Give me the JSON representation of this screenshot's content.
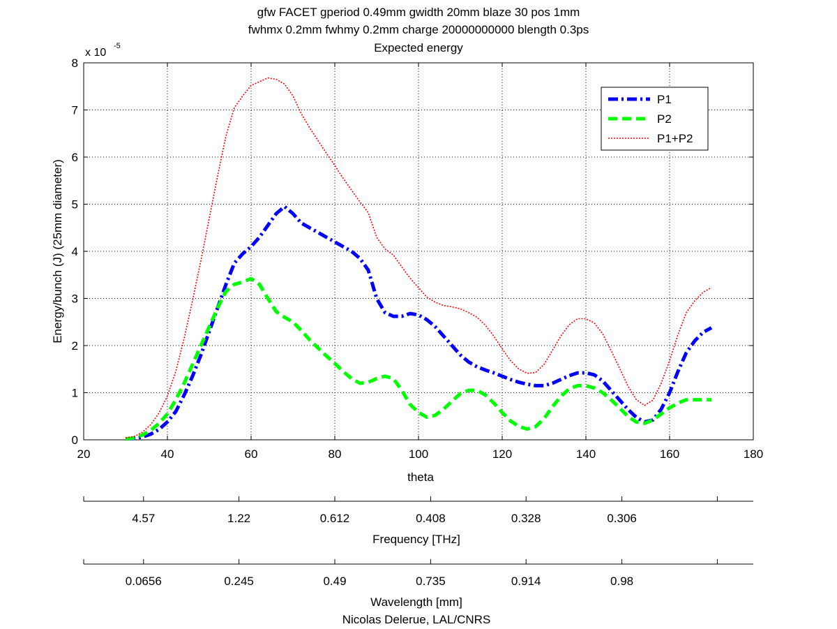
{
  "chart_data": {
    "type": "line",
    "title_lines": [
      "gfw FACET gperiod 0.49mm gwidth 20mm blaze 30 pos 1mm",
      "fwhmx 0.2mm fwhmy 0.2mm charge 20000000000 blength 0.3ps",
      "Expected energy"
    ],
    "xlabel": "theta",
    "ylabel": "Energy/bunch (J) (25mm diameter)",
    "y_exponent_label": "x 10",
    "y_exponent_power": "-5",
    "xlim": [
      20,
      180
    ],
    "ylim": [
      0,
      8
    ],
    "xticks": [
      20,
      40,
      60,
      80,
      100,
      120,
      140,
      160,
      180
    ],
    "yticks": [
      0,
      1,
      2,
      3,
      4,
      5,
      6,
      7,
      8
    ],
    "grid": true,
    "legend_position": "top-right",
    "series": [
      {
        "name": "P1",
        "color": "#0000ff",
        "style": "dash-dot",
        "x": [
          30,
          32,
          34,
          36,
          38,
          40,
          42,
          44,
          46,
          48,
          50,
          52,
          54,
          56,
          58,
          60,
          62,
          64,
          66,
          68,
          70,
          72,
          74,
          76,
          78,
          80,
          82,
          84,
          86,
          88,
          90,
          92,
          94,
          96,
          98,
          100,
          102,
          104,
          106,
          108,
          110,
          112,
          114,
          116,
          118,
          120,
          122,
          124,
          126,
          128,
          130,
          132,
          134,
          136,
          138,
          140,
          142,
          144,
          146,
          148,
          150,
          152,
          154,
          156,
          158,
          160,
          162,
          164,
          166,
          168,
          170
        ],
        "y": [
          0.02,
          0.03,
          0.06,
          0.12,
          0.22,
          0.38,
          0.6,
          0.95,
          1.35,
          1.8,
          2.3,
          2.8,
          3.3,
          3.75,
          3.95,
          4.1,
          4.3,
          4.55,
          4.8,
          4.95,
          4.8,
          4.6,
          4.5,
          4.4,
          4.3,
          4.2,
          4.1,
          4.0,
          3.85,
          3.6,
          3.0,
          2.7,
          2.62,
          2.62,
          2.68,
          2.65,
          2.55,
          2.4,
          2.2,
          2.0,
          1.8,
          1.65,
          1.55,
          1.48,
          1.42,
          1.35,
          1.28,
          1.22,
          1.18,
          1.15,
          1.15,
          1.2,
          1.28,
          1.36,
          1.42,
          1.42,
          1.38,
          1.25,
          1.05,
          0.85,
          0.65,
          0.48,
          0.38,
          0.42,
          0.65,
          1.0,
          1.45,
          1.85,
          2.1,
          2.28,
          2.38
        ]
      },
      {
        "name": "P2",
        "color": "#00ff00",
        "style": "dashed",
        "x": [
          30,
          32,
          34,
          36,
          38,
          40,
          42,
          44,
          46,
          48,
          50,
          52,
          54,
          56,
          58,
          60,
          62,
          64,
          66,
          68,
          70,
          72,
          74,
          76,
          78,
          80,
          82,
          84,
          86,
          88,
          90,
          92,
          94,
          96,
          98,
          100,
          102,
          104,
          106,
          108,
          110,
          112,
          114,
          116,
          118,
          120,
          122,
          124,
          126,
          128,
          130,
          132,
          134,
          136,
          138,
          140,
          142,
          144,
          146,
          148,
          150,
          152,
          154,
          156,
          158,
          160,
          162,
          164,
          166,
          168,
          170
        ],
        "y": [
          0.02,
          0.04,
          0.1,
          0.2,
          0.35,
          0.55,
          0.85,
          1.2,
          1.6,
          2.0,
          2.4,
          2.8,
          3.15,
          3.3,
          3.35,
          3.42,
          3.3,
          3.0,
          2.72,
          2.6,
          2.5,
          2.32,
          2.12,
          1.95,
          1.78,
          1.62,
          1.45,
          1.3,
          1.2,
          1.22,
          1.3,
          1.35,
          1.3,
          1.05,
          0.75,
          0.58,
          0.48,
          0.52,
          0.65,
          0.82,
          0.98,
          1.05,
          1.05,
          0.95,
          0.78,
          0.58,
          0.4,
          0.28,
          0.23,
          0.28,
          0.45,
          0.7,
          0.92,
          1.08,
          1.15,
          1.15,
          1.1,
          1.0,
          0.85,
          0.68,
          0.5,
          0.38,
          0.35,
          0.42,
          0.55,
          0.68,
          0.78,
          0.85,
          0.85,
          0.85,
          0.85
        ]
      },
      {
        "name": "P1+P2",
        "color": "#ff0000",
        "style": "dotted",
        "x": [
          30,
          32,
          34,
          36,
          38,
          40,
          42,
          44,
          46,
          48,
          50,
          52,
          54,
          56,
          58,
          60,
          62,
          64,
          66,
          68,
          70,
          72,
          74,
          76,
          78,
          80,
          82,
          84,
          86,
          88,
          90,
          92,
          94,
          96,
          98,
          100,
          102,
          104,
          106,
          108,
          110,
          112,
          114,
          116,
          118,
          120,
          122,
          124,
          126,
          128,
          130,
          132,
          134,
          136,
          138,
          140,
          142,
          144,
          146,
          148,
          150,
          152,
          154,
          156,
          158,
          160,
          162,
          164,
          166,
          168,
          170
        ],
        "y": [
          0.04,
          0.07,
          0.16,
          0.32,
          0.57,
          0.93,
          1.45,
          2.15,
          2.95,
          3.8,
          4.7,
          5.6,
          6.45,
          7.05,
          7.3,
          7.52,
          7.6,
          7.68,
          7.65,
          7.55,
          7.3,
          6.92,
          6.62,
          6.35,
          6.08,
          5.82,
          5.55,
          5.3,
          5.05,
          4.82,
          4.3,
          4.05,
          3.92,
          3.67,
          3.43,
          3.23,
          3.03,
          2.92,
          2.85,
          2.82,
          2.78,
          2.7,
          2.6,
          2.43,
          2.2,
          1.93,
          1.68,
          1.5,
          1.41,
          1.43,
          1.6,
          1.9,
          2.2,
          2.44,
          2.57,
          2.57,
          2.48,
          2.25,
          1.9,
          1.53,
          1.15,
          0.86,
          0.73,
          0.84,
          1.2,
          1.68,
          2.23,
          2.7,
          2.95,
          3.13,
          3.23
        ]
      }
    ],
    "secondary_axes": [
      {
        "label": "Frequency [THz]",
        "tick_theta": [
          20,
          34.3,
          57.1,
          80,
          102.9,
          125.7,
          148.6,
          171.4
        ],
        "tick_labels": [
          "",
          "4.57",
          "1.22",
          "0.612",
          "0.408",
          "0.328",
          "0.306",
          ""
        ]
      },
      {
        "label": "Wavelength [mm]",
        "tick_theta": [
          20,
          34.3,
          57.1,
          80,
          102.9,
          125.7,
          148.6,
          171.4
        ],
        "tick_labels": [
          "",
          "0.0656",
          "0.245",
          "0.49",
          "0.735",
          "0.914",
          "0.98",
          ""
        ]
      }
    ],
    "footer": "Nicolas Delerue, LAL/CNRS"
  }
}
